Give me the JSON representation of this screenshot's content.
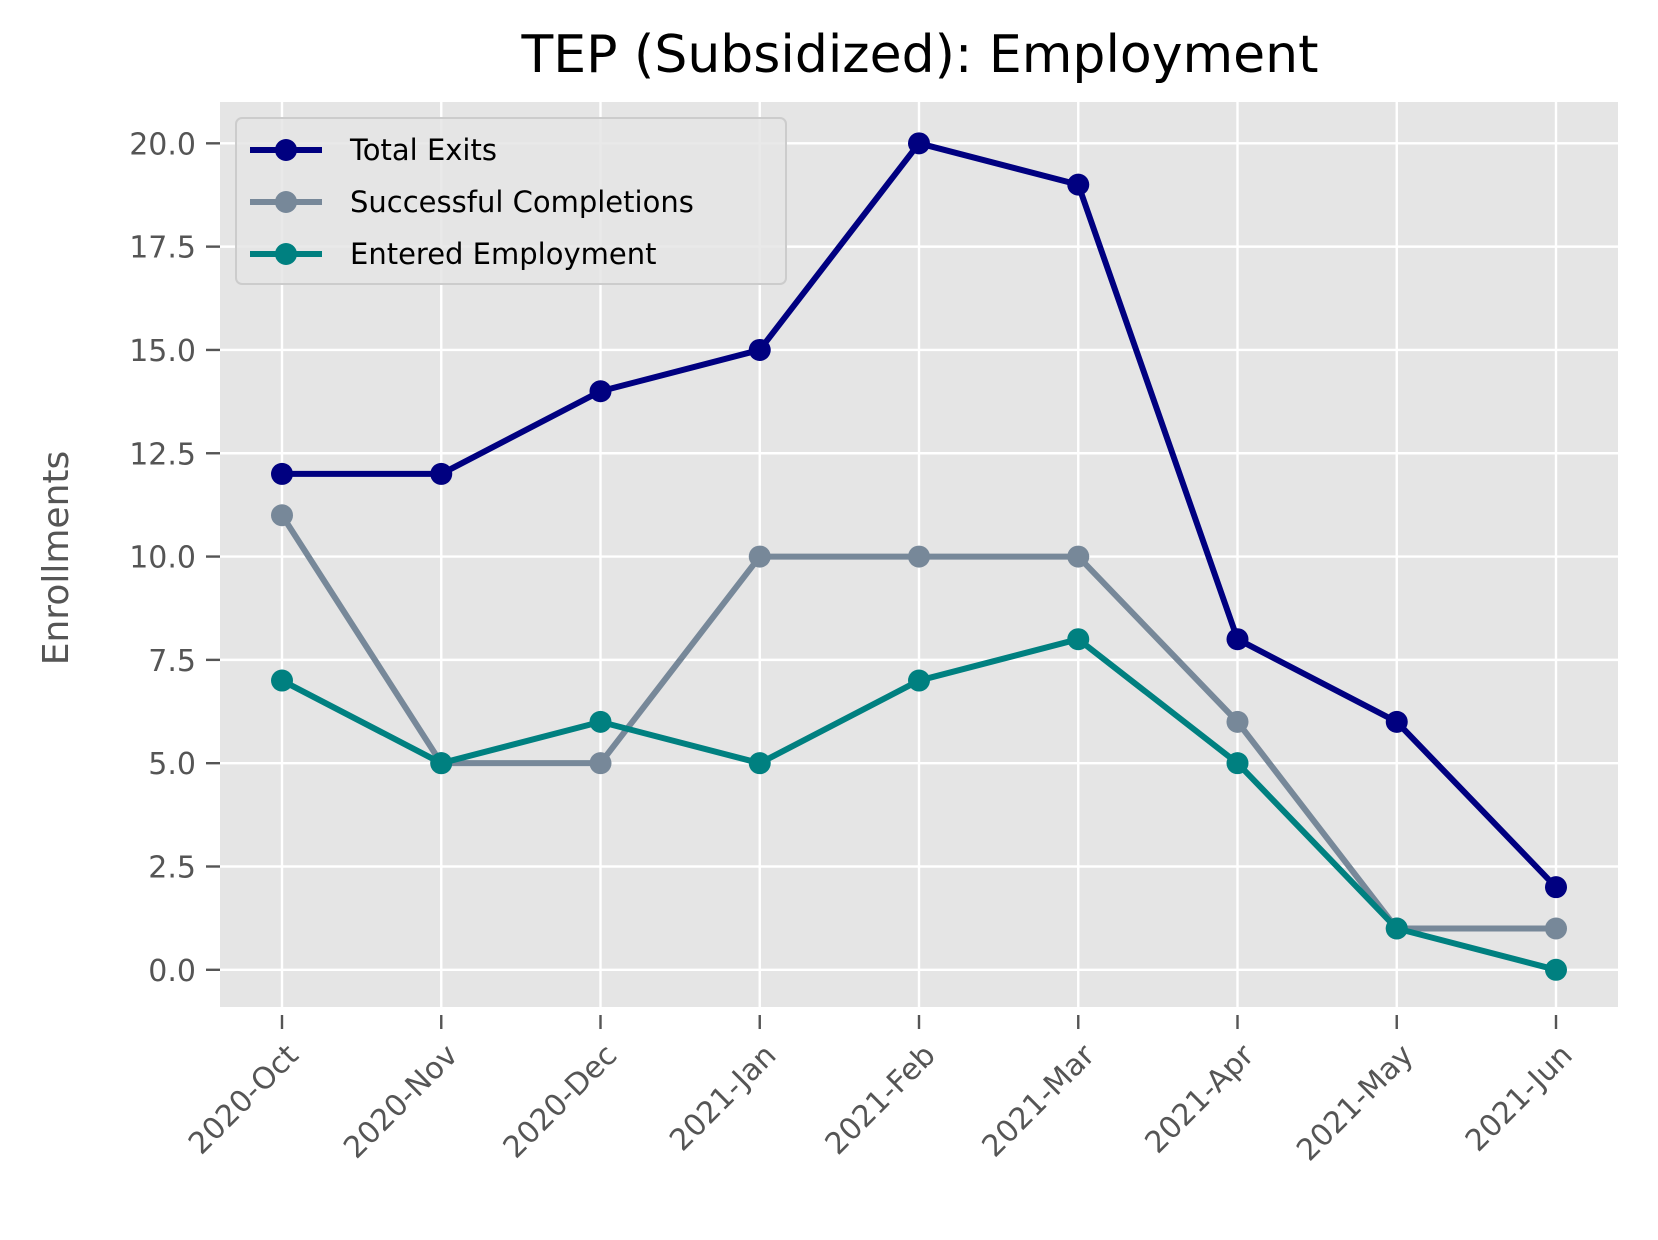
{
  "chart_data": {
    "type": "line",
    "title": "TEP (Subsidized): Employment",
    "xlabel": "",
    "ylabel": "Enrollments",
    "categories": [
      "2020-Oct",
      "2020-Nov",
      "2020-Dec",
      "2021-Jan",
      "2021-Feb",
      "2021-Mar",
      "2021-Apr",
      "2021-May",
      "2021-Jun"
    ],
    "ylim": [
      -0.9,
      21.0
    ],
    "yticks": [
      0.0,
      2.5,
      5.0,
      7.5,
      10.0,
      12.5,
      15.0,
      17.5,
      20.0
    ],
    "ytick_labels": [
      "0.0",
      "2.5",
      "5.0",
      "7.5",
      "10.0",
      "12.5",
      "15.0",
      "17.5",
      "20.0"
    ],
    "grid": true,
    "legend_position": "top-left",
    "series": [
      {
        "name": "Total Exits",
        "color": "#000080",
        "values": [
          12,
          12,
          14,
          15,
          20,
          19,
          8,
          6,
          2
        ]
      },
      {
        "name": "Successful Completions",
        "color": "#778899",
        "values": [
          11,
          5,
          5,
          10,
          10,
          10,
          6,
          1,
          1
        ]
      },
      {
        "name": "Entered Employment",
        "color": "#008080",
        "values": [
          7,
          5,
          6,
          5,
          7,
          8,
          5,
          1,
          0
        ]
      }
    ],
    "colors": {
      "plot_background": "#e5e5e5",
      "grid": "#ffffff",
      "text": "#555555"
    }
  }
}
